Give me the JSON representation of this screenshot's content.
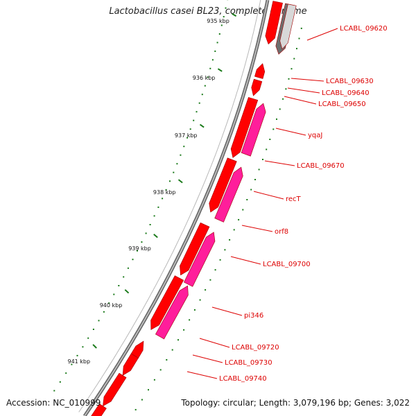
{
  "title": "Lactobacillus casei BL23, complete genome",
  "accession": "Accession: NC_010999",
  "summary": "Topology: circular; Length: 3,079,196 bp; Genes: 3,022",
  "colors": {
    "backbone": "#888888",
    "cds_forward": "#ff0000",
    "cds_reverse": "#ff1e9b",
    "cds_grey": "#6e6e6e",
    "tick": "#1a7a1a",
    "label": "#dd0000"
  },
  "scale_ticks": [
    "935 kbp",
    "936 kbp",
    "937 kbp",
    "938 kbp",
    "939 kbp",
    "940 kbp",
    "941 kbp"
  ],
  "gene_labels": [
    "LCABL_09620",
    "LCABL_09630",
    "LCABL_09640",
    "LCABL_09650",
    "yqaJ",
    "LCABL_09670",
    "recT",
    "orf8",
    "LCABL_09700",
    "pi346",
    "LCABL_09720",
    "LCABL_09730",
    "LCABL_09740"
  ]
}
